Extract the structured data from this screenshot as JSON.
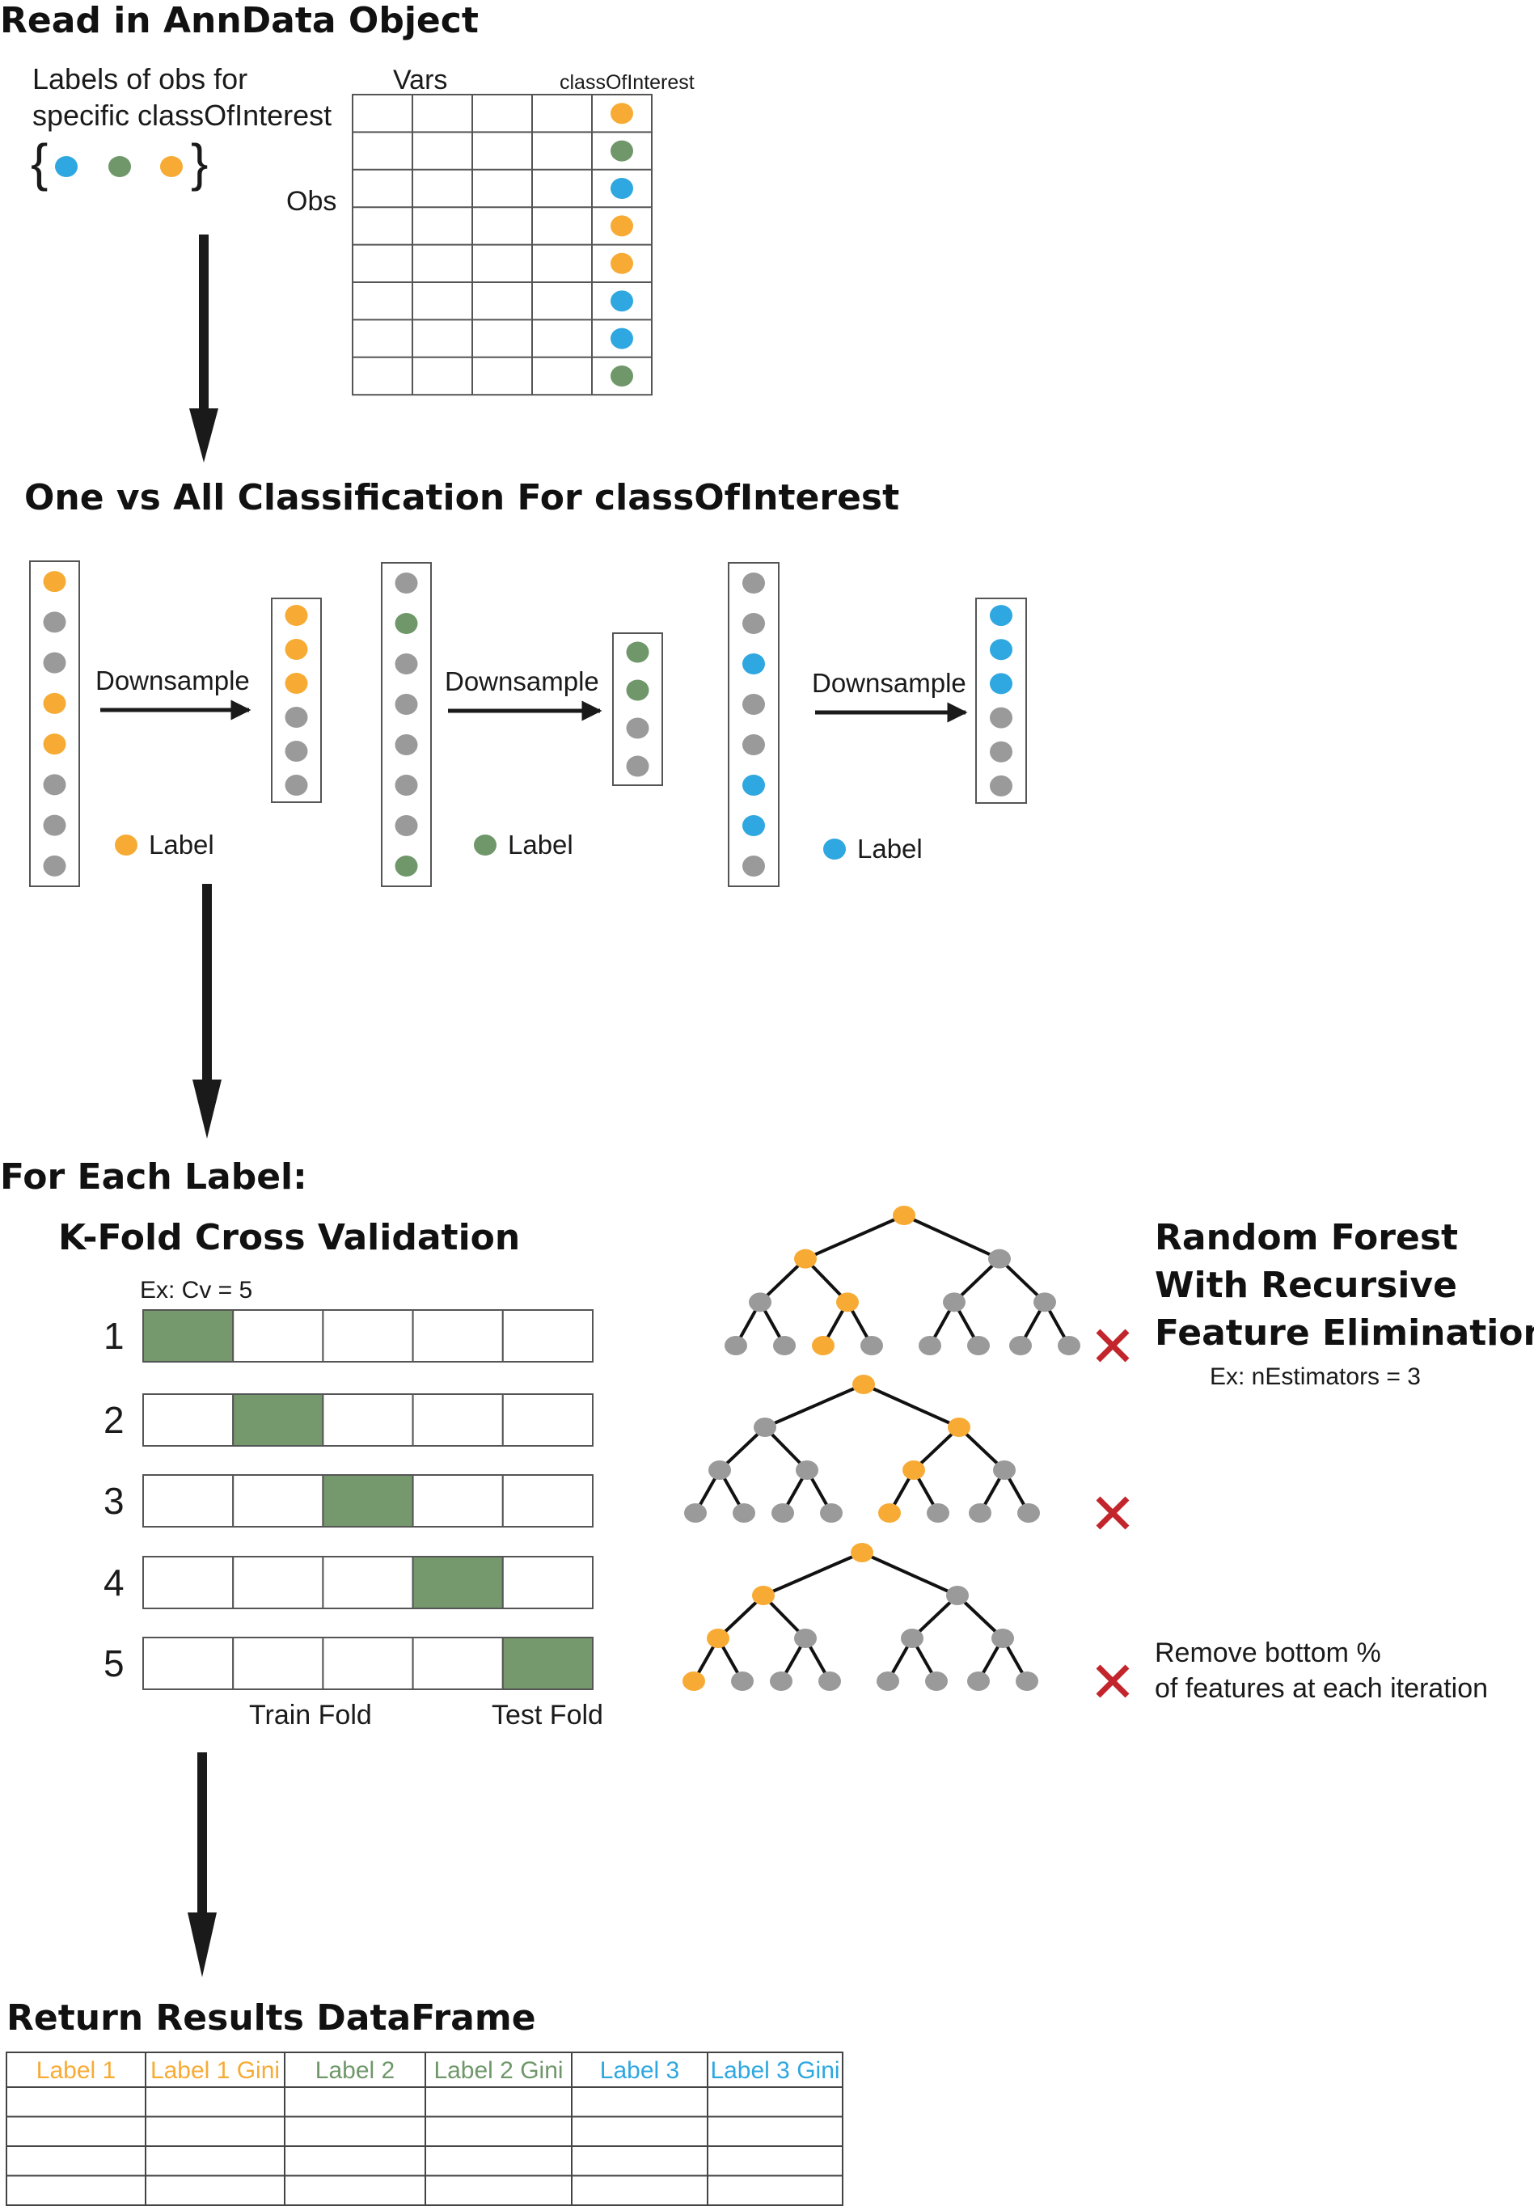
{
  "colors": {
    "orange": "#f7ab35",
    "green": "#6f976a",
    "blue": "#2fa7e0",
    "gray": "#9a9a9a",
    "fold_fill": "#75996c",
    "cross": "#c2252b"
  },
  "section1": {
    "title": "Read in AnnData Object",
    "labels_caption_line1": "Labels of obs for",
    "labels_caption_line2": "specific classOfInterest",
    "brace_open": "{",
    "brace_close": "}",
    "label_set": [
      "blue",
      "green",
      "orange"
    ],
    "vars_label": "Vars",
    "class_col_label": "classOfInterest",
    "obs_label": "Obs",
    "obs_class_values": [
      "orange",
      "green",
      "blue",
      "orange",
      "orange",
      "blue",
      "blue",
      "green"
    ]
  },
  "section2": {
    "title": "One vs All Classification For classOfInterest",
    "panels": [
      {
        "label_color": "orange",
        "before": [
          "orange",
          "gray",
          "gray",
          "orange",
          "orange",
          "gray",
          "gray",
          "gray"
        ],
        "after": [
          "orange",
          "orange",
          "orange",
          "gray",
          "gray",
          "gray"
        ],
        "arrow_label": "Downsample",
        "legend_text": "Label"
      },
      {
        "label_color": "green",
        "before": [
          "gray",
          "green",
          "gray",
          "gray",
          "gray",
          "gray",
          "gray",
          "green"
        ],
        "after": [
          "green",
          "green",
          "gray",
          "gray"
        ],
        "arrow_label": "Downsample",
        "legend_text": "Label"
      },
      {
        "label_color": "blue",
        "before": [
          "gray",
          "gray",
          "blue",
          "gray",
          "gray",
          "blue",
          "blue",
          "gray"
        ],
        "after": [
          "blue",
          "blue",
          "blue",
          "gray",
          "gray",
          "gray"
        ],
        "arrow_label": "Downsample",
        "legend_text": "Label"
      }
    ]
  },
  "section3": {
    "title": "For Each Label:",
    "kfold_title": "K-Fold Cross Validation",
    "kfold_example": "Ex: Cv = 5",
    "folds": [
      1,
      2,
      3,
      4,
      5
    ],
    "test_fold_index": [
      0,
      1,
      2,
      3,
      4
    ],
    "train_label": "Train Fold",
    "test_label": "Test Fold",
    "rf_title_line1": "Random Forest",
    "rf_title_line2": "With Recursive",
    "rf_title_line3": "Feature Elimination",
    "rf_example": "Ex: nEstimators = 3",
    "remove_line1": "Remove bottom %",
    "remove_line2": "of features at each iteration",
    "trees": [
      {
        "highlight": [
          "root",
          "L",
          "LR",
          "LRL"
        ]
      },
      {
        "highlight": [
          "root",
          "R",
          "RL",
          "RLL"
        ]
      },
      {
        "highlight": [
          "root",
          "L",
          "LL",
          "LLL"
        ]
      }
    ]
  },
  "section4": {
    "title": "Return Results DataFrame",
    "headers": [
      {
        "text": "Label 1",
        "color": "orange"
      },
      {
        "text": "Label 1 Gini",
        "color": "orange"
      },
      {
        "text": "Label 2",
        "color": "green"
      },
      {
        "text": "Label 2 Gini",
        "color": "green"
      },
      {
        "text": "Label 3",
        "color": "blue"
      },
      {
        "text": "Label 3 Gini",
        "color": "blue"
      }
    ],
    "empty_rows": 4
  }
}
